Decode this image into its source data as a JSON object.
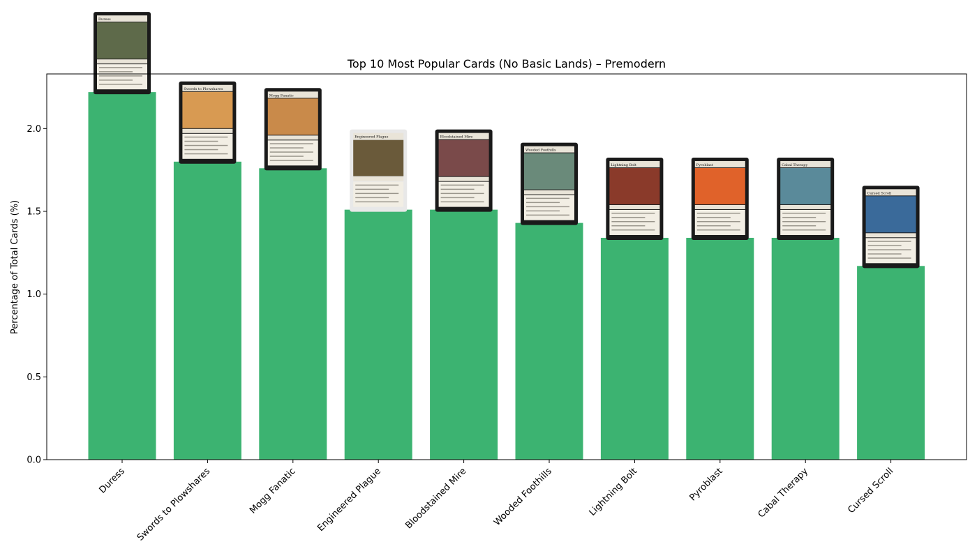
{
  "chart_data": {
    "type": "bar",
    "title": "Top 10 Most Popular Cards (No Basic Lands) – Premodern",
    "xlabel": "",
    "ylabel": "Percentage of Total Cards (%)",
    "categories": [
      "Duress",
      "Swords to Plowshares",
      "Mogg Fanatic",
      "Engineered Plague",
      "Bloodstained Mire",
      "Wooded Foothills",
      "Lightning Bolt",
      "Pyroblast",
      "Cabal Therapy",
      "Cursed Scroll"
    ],
    "values": [
      2.22,
      1.8,
      1.76,
      1.51,
      1.51,
      1.43,
      1.34,
      1.34,
      1.34,
      1.17
    ],
    "ylim": [
      0,
      2.33
    ],
    "yticks": [
      "0.0",
      "0.5",
      "1.0",
      "1.5",
      "2.0"
    ],
    "grid": false,
    "bar_color": "#3cb371",
    "card_images": [
      {
        "name": "Duress",
        "frame": "#1a1a1a",
        "art": "#5e6a4a"
      },
      {
        "name": "Swords to Plowshares",
        "frame": "#1a1a1a",
        "art": "#d89a52"
      },
      {
        "name": "Mogg Fanatic",
        "frame": "#1a1a1a",
        "art": "#c98a4a"
      },
      {
        "name": "Engineered Plague",
        "frame": "#e8e8e8",
        "art": "#6a5a3a"
      },
      {
        "name": "Bloodstained Mire",
        "frame": "#1a1a1a",
        "art": "#7a4a4a"
      },
      {
        "name": "Wooded Foothills",
        "frame": "#1a1a1a",
        "art": "#6a8a7a"
      },
      {
        "name": "Lightning Bolt",
        "frame": "#1a1a1a",
        "art": "#8a3a2a"
      },
      {
        "name": "Pyroblast",
        "frame": "#1a1a1a",
        "art": "#e0622a"
      },
      {
        "name": "Cabal Therapy",
        "frame": "#1a1a1a",
        "art": "#5a8a9a"
      },
      {
        "name": "Cursed Scroll",
        "frame": "#1a1a1a",
        "art": "#3a6a9a"
      }
    ]
  }
}
